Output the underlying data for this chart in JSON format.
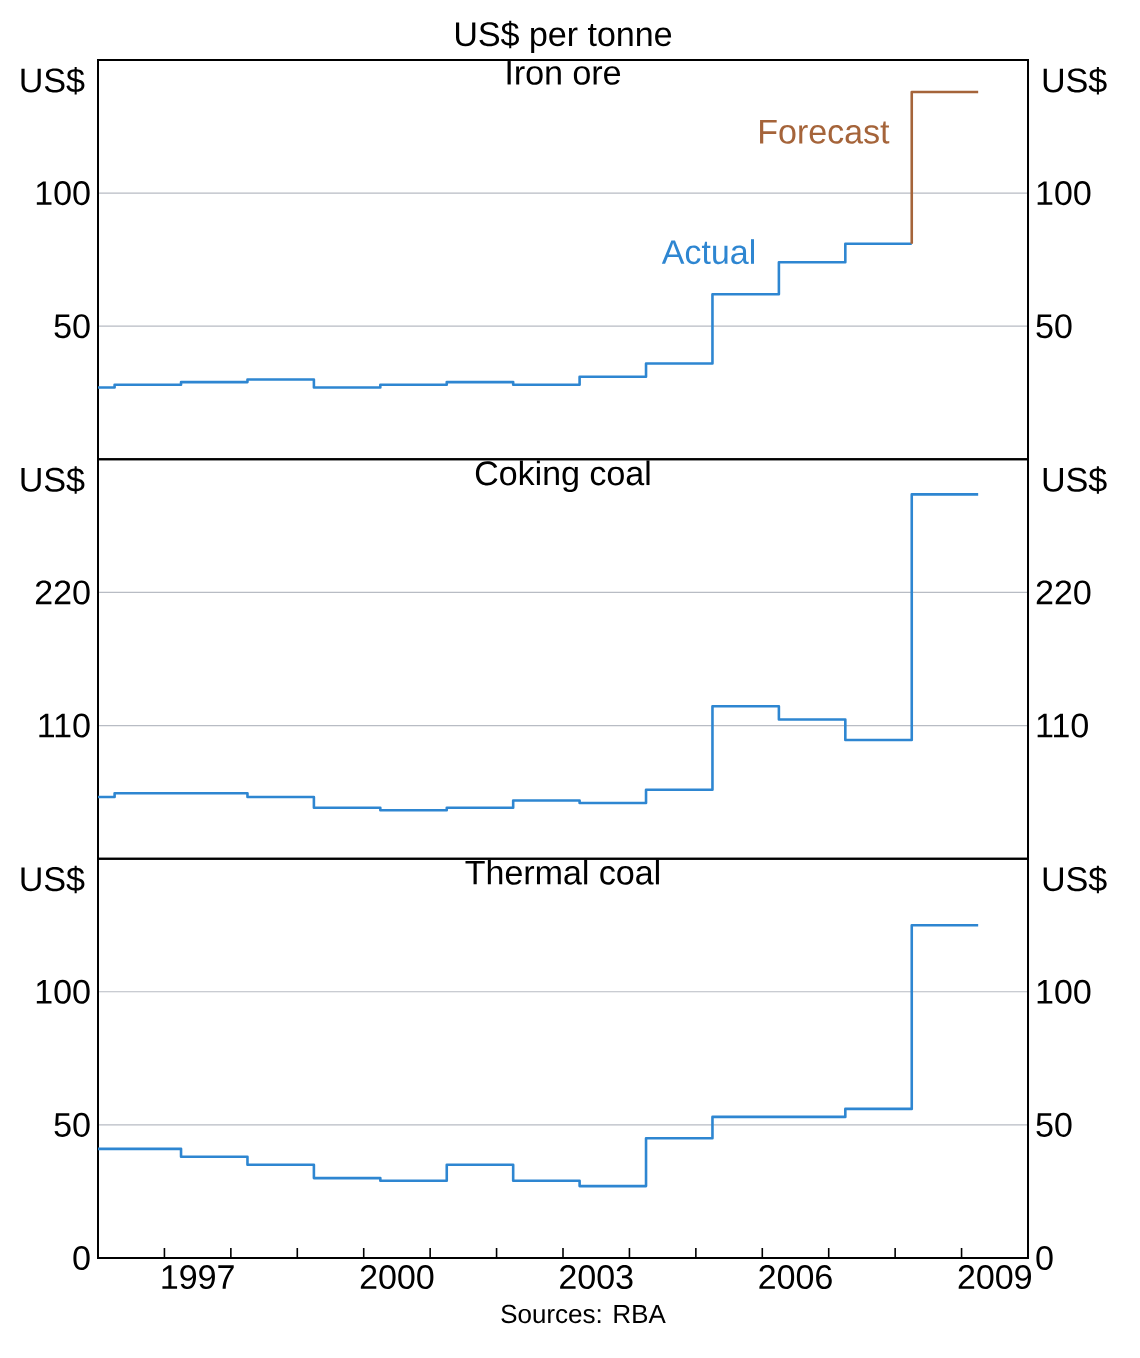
{
  "chart_data": [
    {
      "type": "step",
      "subtitle": "US$ per tonne",
      "title": "Iron ore",
      "ylabel": "US$",
      "y2label": "US$",
      "grid": "y",
      "tick_labels": "y",
      "xlim": [
        1996,
        2010
      ],
      "ylim": [
        0,
        150
      ],
      "yticks": [
        50,
        100
      ],
      "y2lim": [
        0,
        150
      ],
      "y2ticks": [
        50,
        100
      ],
      "series": [
        {
          "name": "Actual",
          "color": "#2e86d1",
          "x": [
            1996,
            1996.25,
            1997.25,
            1998.25,
            1999.25,
            2000.25,
            2001.25,
            2002.25,
            2003.25,
            2004.25,
            2005.25,
            2006.25,
            2007.25,
            2008.25
          ],
          "values": [
            27,
            28,
            29,
            30,
            27,
            28,
            29,
            28,
            31,
            36,
            62,
            74,
            81,
            81
          ]
        },
        {
          "name": "Forecast",
          "color": "#a5643a",
          "x": [
            2008.25,
            2008.25,
            2009.25
          ],
          "values": [
            81,
            138,
            138
          ]
        }
      ]
    },
    {
      "type": "step",
      "title": "Coking coal",
      "ylabel": "US$",
      "y2label": "US$",
      "grid": "y",
      "tick_labels": "y",
      "xlim": [
        1996,
        2010
      ],
      "ylim": [
        0,
        330
      ],
      "yticks": [
        110,
        220
      ],
      "y2lim": [
        0,
        330
      ],
      "y2ticks": [
        110,
        220
      ],
      "series": [
        {
          "color": "#2e86d1",
          "x": [
            1996,
            1996.25,
            1998.25,
            1999.25,
            2000.25,
            2001.25,
            2002.25,
            2003.25,
            2004.25,
            2005.25,
            2006.25,
            2007.25,
            2008.25,
            2009.25
          ],
          "values": [
            51,
            54,
            51,
            42,
            40,
            42,
            48,
            46,
            57,
            126,
            115,
            98,
            301,
            301
          ]
        }
      ]
    },
    {
      "type": "step",
      "title": "Thermal coal",
      "ylabel": "US$",
      "y2label": "US$",
      "grid": "y",
      "xlim": [
        1996,
        2010
      ],
      "ylim": [
        0,
        150
      ],
      "yticks": [
        0,
        50,
        100
      ],
      "y2lim": [
        0,
        150
      ],
      "y2ticks": [
        0,
        50,
        100
      ],
      "xticks": [
        {
          "value": 1997,
          "label": null
        },
        {
          "value": 1998,
          "label": null
        },
        {
          "value": 1999,
          "label": null
        },
        {
          "value": 2000,
          "label": null
        },
        {
          "value": 2001,
          "label": null
        },
        {
          "value": 2002,
          "label": null
        },
        {
          "value": 2003,
          "label": null
        },
        {
          "value": 2004,
          "label": null
        },
        {
          "value": 2005,
          "label": null
        },
        {
          "value": 2006,
          "label": null
        },
        {
          "value": 2007,
          "label": null
        },
        {
          "value": 2008,
          "label": null
        },
        {
          "value": 2009,
          "label": null
        },
        {
          "value": 1997.5,
          "label": "1997"
        },
        {
          "value": 2000.5,
          "label": "2000"
        },
        {
          "value": 2003.5,
          "label": "2003"
        },
        {
          "value": 2006.5,
          "label": "2006"
        },
        {
          "value": 2009.5,
          "label": "2009"
        }
      ],
      "annotations": [
        "Sources: RBA"
      ],
      "series": [
        {
          "color": "#2e86d1",
          "x": [
            1996,
            1997.25,
            1998.25,
            1999.25,
            2000.25,
            2001.25,
            2002.25,
            2003.25,
            2004.25,
            2005.25,
            2007.25,
            2008.25,
            2009.25
          ],
          "values": [
            41,
            38,
            35,
            30,
            29,
            35,
            29,
            27,
            45,
            53,
            56,
            125,
            125
          ]
        }
      ]
    }
  ]
}
